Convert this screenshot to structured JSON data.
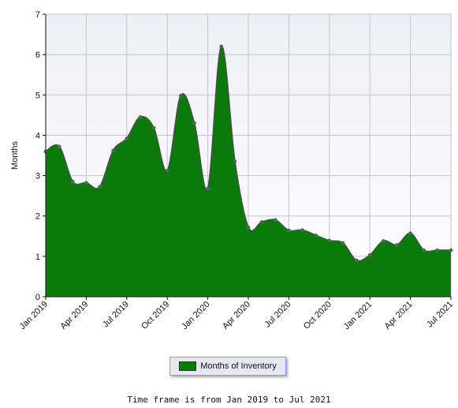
{
  "chart_data": {
    "type": "area",
    "ylabel": "Months",
    "ylim": [
      0,
      7
    ],
    "yticks": [
      0,
      1,
      2,
      3,
      4,
      5,
      6,
      7
    ],
    "xlim": [
      "2019-01",
      "2021-07"
    ],
    "xticks": [
      "Jan 2019",
      "Apr 2019",
      "Jul 2019",
      "Oct 2019",
      "Jan 2020",
      "Apr 2020",
      "Jul 2020",
      "Oct 2020",
      "Jan 2021",
      "Apr 2021",
      "Jul 2021"
    ],
    "grid": true,
    "legend_position": "bottom",
    "x": [
      "2019-01",
      "2019-02",
      "2019-03",
      "2019-04",
      "2019-05",
      "2019-06",
      "2019-07",
      "2019-08",
      "2019-09",
      "2019-10",
      "2019-11",
      "2019-12",
      "2020-01",
      "2020-02",
      "2020-03",
      "2020-04",
      "2020-05",
      "2020-06",
      "2020-07",
      "2020-08",
      "2020-09",
      "2020-10",
      "2020-11",
      "2020-12",
      "2021-01",
      "2021-02",
      "2021-03",
      "2021-04",
      "2021-05",
      "2021-06",
      "2021-07"
    ],
    "series": [
      {
        "name": "Months of Inventory",
        "color": "#0a7a0a",
        "values": [
          3.6,
          3.72,
          2.85,
          2.82,
          2.72,
          3.62,
          3.92,
          4.45,
          4.18,
          3.12,
          4.98,
          4.3,
          2.68,
          6.2,
          3.35,
          1.72,
          1.85,
          1.9,
          1.64,
          1.65,
          1.52,
          1.39,
          1.33,
          0.9,
          1.03,
          1.38,
          1.28,
          1.57,
          1.15,
          1.15,
          1.15
        ]
      }
    ]
  },
  "legend": {
    "label": "Months of Inventory"
  },
  "footer": {
    "text": "Time frame is from Jan 2019 to Jul 2021"
  }
}
